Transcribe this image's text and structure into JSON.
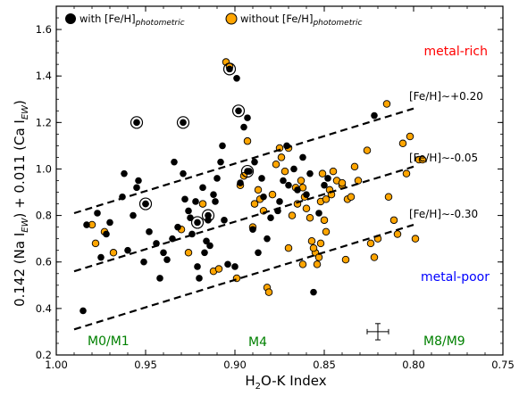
{
  "chart_data": {
    "type": "scatter",
    "xlabel": "H₂O-K Index",
    "ylabel": "0.142 (Na I_EW) + 0.011 (Ca I_EW)",
    "xlim": [
      1.0,
      0.75
    ],
    "ylim": [
      0.2,
      1.7
    ],
    "x_reversed": true,
    "xticks": [
      1.0,
      0.95,
      0.9,
      0.85,
      0.8,
      0.75
    ],
    "xtick_labels": [
      "1.00",
      "0.95",
      "0.90",
      "0.85",
      "0.80",
      "0.75"
    ],
    "yticks": [
      0.2,
      0.4,
      0.6,
      0.8,
      1.0,
      1.2,
      1.4,
      1.6
    ],
    "ytick_labels": [
      "0.2",
      "0.4",
      "0.6",
      "0.8",
      "1.0",
      "1.2",
      "1.4",
      "1.6"
    ],
    "legend": {
      "placement": "top",
      "entries": [
        {
          "label": "with [Fe/H]",
          "sub": "photometric",
          "color": "#000000"
        },
        {
          "label": "without [Fe/H]",
          "sub": "photometric",
          "color": "#FFA500"
        }
      ]
    },
    "series": [
      {
        "name": "with [Fe/H]photometric",
        "color": "#000000",
        "points": [
          [
            0.985,
            0.39
          ],
          [
            0.983,
            0.76
          ],
          [
            0.977,
            0.81
          ],
          [
            0.975,
            0.62
          ],
          [
            0.972,
            0.72
          ],
          [
            0.97,
            0.77
          ],
          [
            0.963,
            0.88
          ],
          [
            0.962,
            0.98
          ],
          [
            0.96,
            0.65
          ],
          [
            0.957,
            0.8
          ],
          [
            0.955,
            0.92
          ],
          [
            0.954,
            0.95
          ],
          [
            0.951,
            0.6
          ],
          [
            0.95,
            0.85
          ],
          [
            0.948,
            0.73
          ],
          [
            0.944,
            0.68
          ],
          [
            0.942,
            0.53
          ],
          [
            0.94,
            0.64
          ],
          [
            0.938,
            0.61
          ],
          [
            0.935,
            0.7
          ],
          [
            0.934,
            1.03
          ],
          [
            0.932,
            0.75
          ],
          [
            0.929,
            0.98
          ],
          [
            0.928,
            0.87
          ],
          [
            0.926,
            0.82
          ],
          [
            0.925,
            0.79
          ],
          [
            0.924,
            0.72
          ],
          [
            0.922,
            0.86
          ],
          [
            0.921,
            0.58
          ],
          [
            0.92,
            0.53
          ],
          [
            0.918,
            0.92
          ],
          [
            0.917,
            0.64
          ],
          [
            0.916,
            0.69
          ],
          [
            0.915,
            0.78
          ],
          [
            0.914,
            0.67
          ],
          [
            0.912,
            0.89
          ],
          [
            0.911,
            0.86
          ],
          [
            0.91,
            0.96
          ],
          [
            0.908,
            1.03
          ],
          [
            0.907,
            1.1
          ],
          [
            0.906,
            0.78
          ],
          [
            0.904,
            0.59
          ],
          [
            0.9,
            0.58
          ],
          [
            0.899,
            1.39
          ],
          [
            0.897,
            0.94
          ],
          [
            0.895,
            1.18
          ],
          [
            0.893,
            1.22
          ],
          [
            0.892,
            0.99
          ],
          [
            0.89,
            0.74
          ],
          [
            0.889,
            1.03
          ],
          [
            0.887,
            0.64
          ],
          [
            0.885,
            0.96
          ],
          [
            0.884,
            0.88
          ],
          [
            0.882,
            0.7
          ],
          [
            0.88,
            0.79
          ],
          [
            0.876,
            0.82
          ],
          [
            0.875,
            0.86
          ],
          [
            0.873,
            0.95
          ],
          [
            0.871,
            1.1
          ],
          [
            0.87,
            0.93
          ],
          [
            0.867,
            1.0
          ],
          [
            0.865,
            0.91
          ],
          [
            0.862,
            1.05
          ],
          [
            0.86,
            0.89
          ],
          [
            0.858,
            0.98
          ],
          [
            0.856,
            0.47
          ],
          [
            0.853,
            0.81
          ],
          [
            0.85,
            0.93
          ],
          [
            0.848,
            0.96
          ],
          [
            0.822,
            1.23
          ]
        ],
        "ringed": [
          [
            0.955,
            1.2
          ],
          [
            0.929,
            1.2
          ],
          [
            0.903,
            1.43
          ],
          [
            0.898,
            1.25
          ],
          [
            0.95,
            0.85
          ],
          [
            0.921,
            0.77
          ],
          [
            0.915,
            0.8
          ],
          [
            0.893,
            0.99
          ]
        ]
      },
      {
        "name": "without [Fe/H]photometric",
        "color": "#FFA500",
        "points": [
          [
            0.98,
            0.76
          ],
          [
            0.978,
            0.68
          ],
          [
            0.973,
            0.73
          ],
          [
            0.968,
            0.64
          ],
          [
            0.93,
            0.74
          ],
          [
            0.926,
            0.64
          ],
          [
            0.918,
            0.85
          ],
          [
            0.912,
            0.56
          ],
          [
            0.909,
            0.57
          ],
          [
            0.905,
            1.46
          ],
          [
            0.903,
            1.44
          ],
          [
            0.899,
            0.53
          ],
          [
            0.897,
            0.93
          ],
          [
            0.895,
            0.97
          ],
          [
            0.893,
            1.12
          ],
          [
            0.89,
            0.75
          ],
          [
            0.889,
            0.85
          ],
          [
            0.887,
            0.91
          ],
          [
            0.886,
            0.87
          ],
          [
            0.884,
            0.82
          ],
          [
            0.882,
            0.49
          ],
          [
            0.881,
            0.47
          ],
          [
            0.879,
            0.89
          ],
          [
            0.877,
            1.02
          ],
          [
            0.875,
            1.09
          ],
          [
            0.874,
            1.05
          ],
          [
            0.872,
            0.99
          ],
          [
            0.87,
            1.09
          ],
          [
            0.868,
            0.8
          ],
          [
            0.866,
            0.92
          ],
          [
            0.865,
            0.85
          ],
          [
            0.863,
            0.95
          ],
          [
            0.862,
            0.92
          ],
          [
            0.861,
            0.88
          ],
          [
            0.86,
            0.83
          ],
          [
            0.858,
            0.79
          ],
          [
            0.857,
            0.69
          ],
          [
            0.855,
            0.64
          ],
          [
            0.854,
            0.59
          ],
          [
            0.852,
            0.86
          ],
          [
            0.85,
            0.78
          ],
          [
            0.849,
            0.73
          ],
          [
            0.847,
            0.91
          ],
          [
            0.845,
            0.99
          ],
          [
            0.843,
            0.95
          ],
          [
            0.84,
            0.93
          ],
          [
            0.838,
            0.61
          ],
          [
            0.837,
            0.87
          ],
          [
            0.835,
            0.88
          ],
          [
            0.833,
            1.01
          ],
          [
            0.87,
            0.66
          ],
          [
            0.862,
            0.59
          ],
          [
            0.856,
            0.66
          ],
          [
            0.853,
            0.62
          ],
          [
            0.852,
            0.68
          ],
          [
            0.851,
            0.98
          ],
          [
            0.849,
            0.87
          ],
          [
            0.846,
            0.89
          ],
          [
            0.84,
            0.94
          ],
          [
            0.831,
            0.95
          ],
          [
            0.826,
            1.08
          ],
          [
            0.824,
            0.68
          ],
          [
            0.822,
            0.62
          ],
          [
            0.82,
            0.7
          ],
          [
            0.815,
            1.28
          ],
          [
            0.814,
            0.88
          ],
          [
            0.811,
            0.78
          ],
          [
            0.809,
            0.72
          ],
          [
            0.806,
            1.11
          ],
          [
            0.804,
            0.98
          ],
          [
            0.802,
            1.14
          ],
          [
            0.799,
            0.7
          ],
          [
            0.797,
            1.04
          ],
          [
            0.795,
            1.04
          ]
        ]
      }
    ],
    "lines": [
      {
        "label": "[Fe/H]∼+0.20",
        "x": [
          0.99,
          0.8
        ],
        "y": [
          0.81,
          1.26
        ]
      },
      {
        "label": "[Fe/H]∼-0.05",
        "x": [
          0.99,
          0.8
        ],
        "y": [
          0.56,
          1.01
        ]
      },
      {
        "label": "[Fe/H]∼-0.30",
        "x": [
          0.99,
          0.8
        ],
        "y": [
          0.31,
          0.76
        ]
      }
    ],
    "error_bar": {
      "x": 0.82,
      "y": 0.3,
      "xerr": 0.006,
      "yerr": 0.035
    },
    "annotations": [
      {
        "text": "metal-rich",
        "color": "#FF0000"
      },
      {
        "text": "metal-poor",
        "color": "#0000FF"
      },
      {
        "text": "M0/M1",
        "color": "#008000"
      },
      {
        "text": "M4",
        "color": "#008000"
      },
      {
        "text": "M8/M9",
        "color": "#008000"
      }
    ]
  }
}
